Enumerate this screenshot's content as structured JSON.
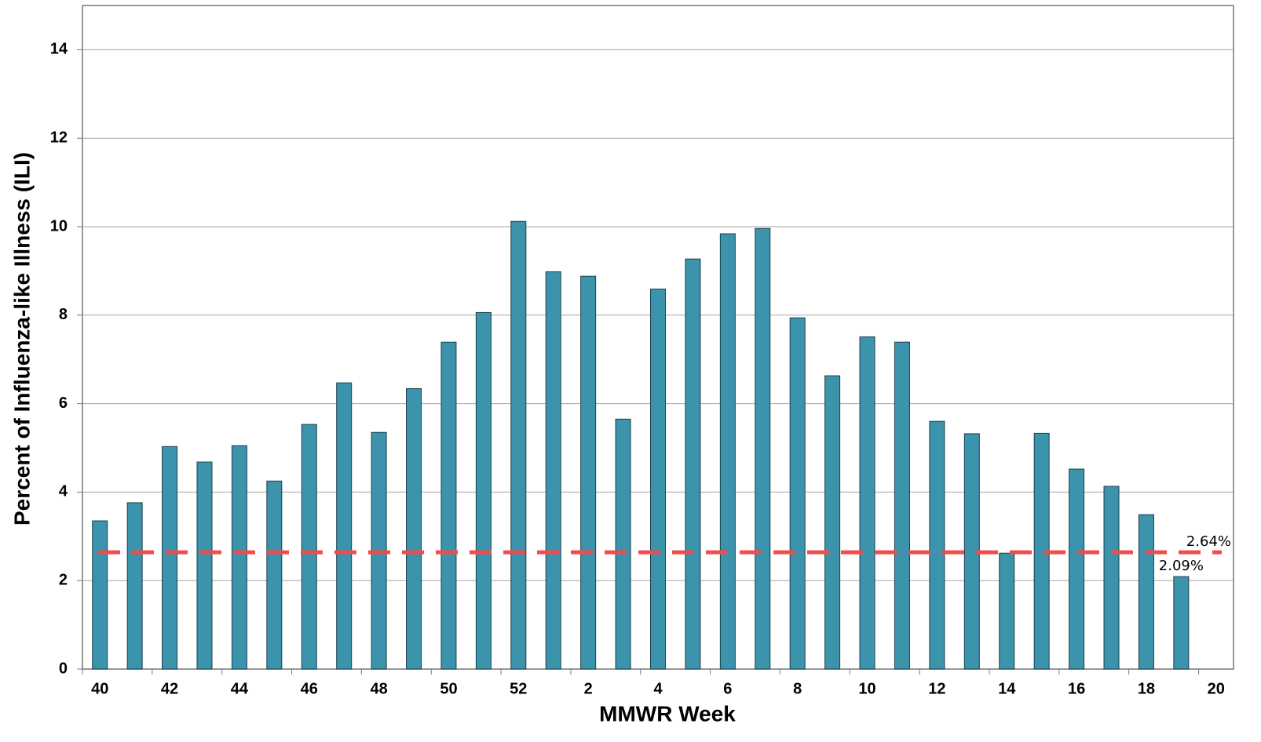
{
  "chart_data": {
    "type": "bar",
    "x_label": "MMWR Week",
    "y_label": "Percent of Influenza-like Illness (ILI)",
    "categories": [
      "40",
      null,
      "42",
      null,
      "44",
      null,
      "46",
      null,
      "48",
      null,
      "50",
      null,
      "52",
      null,
      "2",
      null,
      "4",
      null,
      "6",
      null,
      "8",
      null,
      "10",
      null,
      "12",
      null,
      "14",
      null,
      "16",
      null,
      "18",
      null,
      "20"
    ],
    "values": [
      3.35,
      3.76,
      5.03,
      4.68,
      5.05,
      4.25,
      5.53,
      6.47,
      5.35,
      6.34,
      7.39,
      8.06,
      10.12,
      8.98,
      8.88,
      5.65,
      8.59,
      9.27,
      9.84,
      9.96,
      7.94,
      6.63,
      7.51,
      7.39,
      5.6,
      5.32,
      2.62,
      5.33,
      4.52,
      4.13,
      3.49,
      2.09,
      null
    ],
    "value_labels": [
      null,
      null,
      null,
      null,
      null,
      null,
      null,
      null,
      null,
      null,
      null,
      null,
      null,
      null,
      null,
      null,
      null,
      null,
      null,
      null,
      null,
      null,
      null,
      null,
      null,
      null,
      null,
      null,
      null,
      null,
      null,
      "2.09%",
      null
    ],
    "color": "#3b93ac",
    "baseline": {
      "value": 2.64,
      "label": "2.64%",
      "color": "#f24b4b"
    },
    "ylim": [
      0,
      15
    ],
    "yticks": [
      0,
      2,
      4,
      6,
      8,
      10,
      12,
      14
    ],
    "grid": true
  }
}
